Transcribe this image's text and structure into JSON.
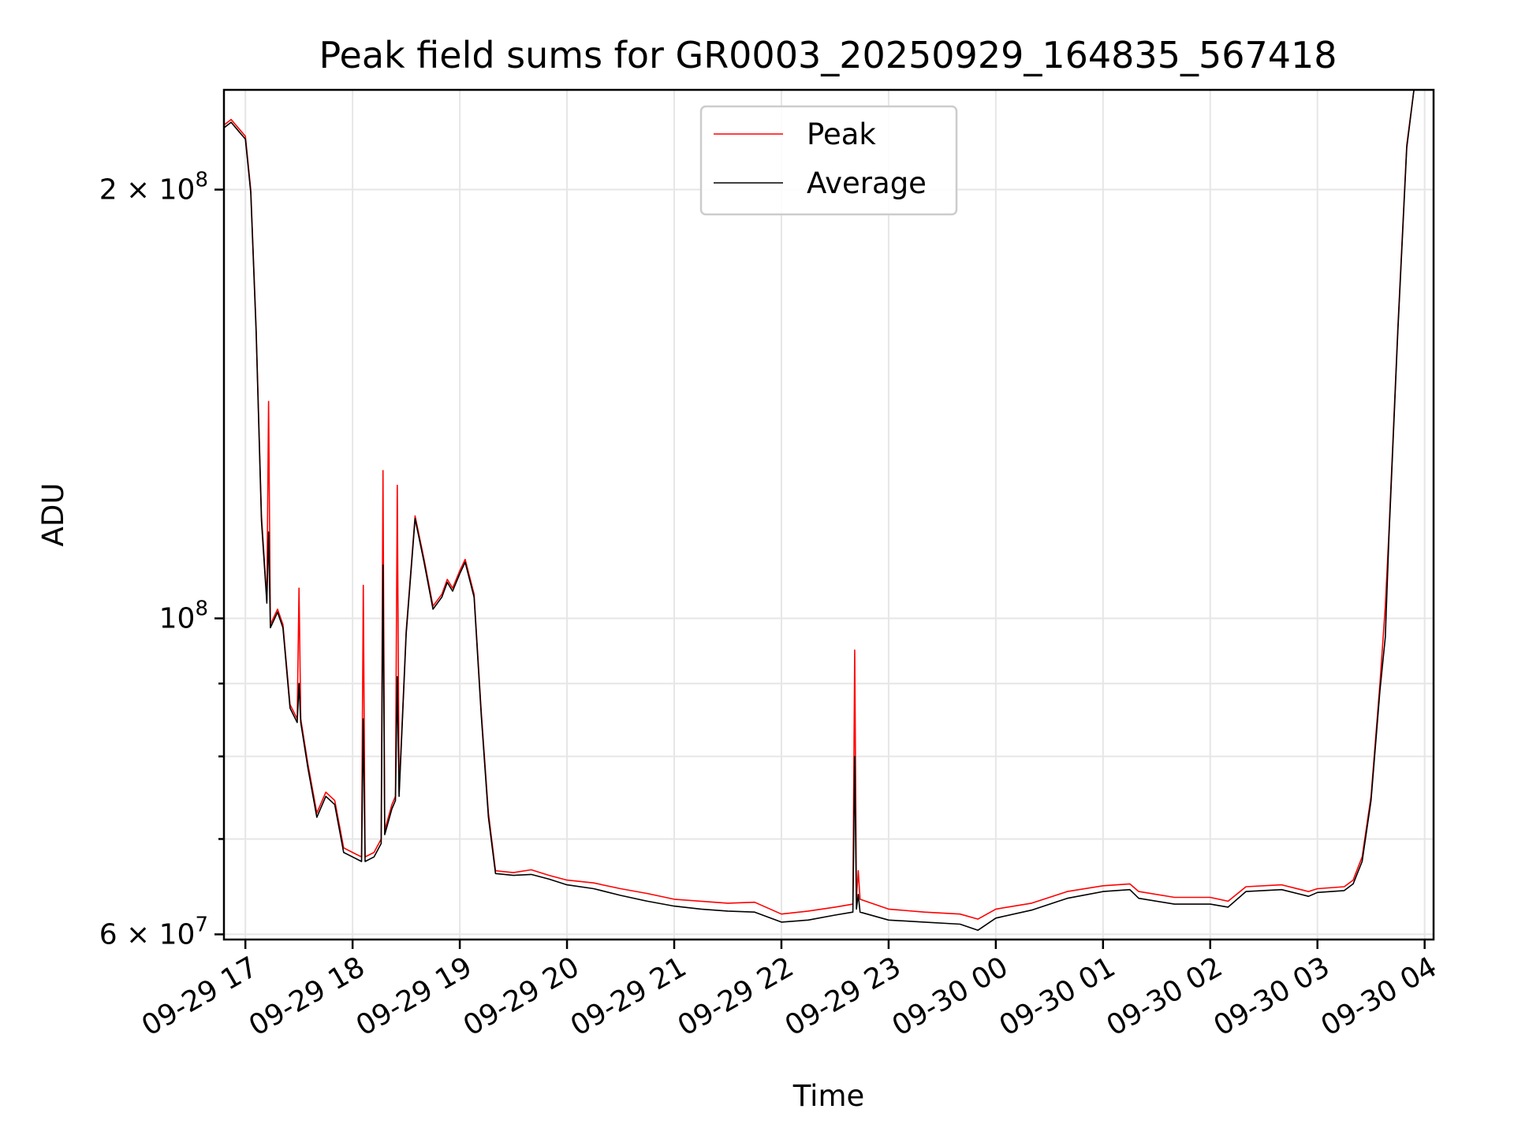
{
  "chart_data": {
    "type": "line",
    "title": "Peak field sums for GR0003_20250929_164835_567418",
    "xlabel": "Time",
    "ylabel": "ADU",
    "yscale": "log",
    "grid": true,
    "legend_position": "top-center",
    "xlim": [
      "2025-09-29 16:48",
      "2025-09-30 04:05"
    ],
    "ylim": [
      59500000,
      235000000
    ],
    "x_ticks": [
      {
        "t": "2025-09-29 17:00",
        "label": "09-29 17"
      },
      {
        "t": "2025-09-29 18:00",
        "label": "09-29 18"
      },
      {
        "t": "2025-09-29 19:00",
        "label": "09-29 19"
      },
      {
        "t": "2025-09-29 20:00",
        "label": "09-29 20"
      },
      {
        "t": "2025-09-29 21:00",
        "label": "09-29 21"
      },
      {
        "t": "2025-09-29 22:00",
        "label": "09-29 22"
      },
      {
        "t": "2025-09-29 23:00",
        "label": "09-29 23"
      },
      {
        "t": "2025-09-30 00:00",
        "label": "09-30 00"
      },
      {
        "t": "2025-09-30 01:00",
        "label": "09-30 01"
      },
      {
        "t": "2025-09-30 02:00",
        "label": "09-30 02"
      },
      {
        "t": "2025-09-30 03:00",
        "label": "09-30 03"
      },
      {
        "t": "2025-09-30 04:00",
        "label": "09-30 04"
      }
    ],
    "y_major_ticks": [
      {
        "v": 60000000,
        "base": "6",
        "exp": "7"
      },
      {
        "v": 100000000,
        "base": "",
        "exp": "8"
      },
      {
        "v": 200000000,
        "base": "2",
        "exp": "8"
      }
    ],
    "y_minor_ticks": [
      70000000,
      80000000,
      90000000
    ],
    "series": [
      {
        "name": "Peak",
        "color": "#ff0000",
        "points": [
          [
            "2025-09-29 16:48",
            222000000
          ],
          [
            "2025-09-29 16:52",
            224000000
          ],
          [
            "2025-09-29 16:56",
            221000000
          ],
          [
            "2025-09-29 17:00",
            218000000
          ],
          [
            "2025-09-29 17:03",
            200000000
          ],
          [
            "2025-09-29 17:06",
            160000000
          ],
          [
            "2025-09-29 17:09",
            118000000
          ],
          [
            "2025-09-29 17:12",
            103000000
          ],
          [
            "2025-09-29 17:13",
            142000000
          ],
          [
            "2025-09-29 17:14",
            99000000
          ],
          [
            "2025-09-29 17:18",
            101500000
          ],
          [
            "2025-09-29 17:21",
            99000000
          ],
          [
            "2025-09-29 17:25",
            87000000
          ],
          [
            "2025-09-29 17:29",
            85000000
          ],
          [
            "2025-09-29 17:30",
            105000000
          ],
          [
            "2025-09-29 17:31",
            85000000
          ],
          [
            "2025-09-29 17:35",
            79000000
          ],
          [
            "2025-09-29 17:40",
            73000000
          ],
          [
            "2025-09-29 17:45",
            75500000
          ],
          [
            "2025-09-29 17:50",
            74500000
          ],
          [
            "2025-09-29 17:55",
            69000000
          ],
          [
            "2025-09-29 18:00",
            68500000
          ],
          [
            "2025-09-29 18:05",
            68000000
          ],
          [
            "2025-09-29 18:06",
            105500000
          ],
          [
            "2025-09-29 18:07",
            68000000
          ],
          [
            "2025-09-29 18:12",
            68500000
          ],
          [
            "2025-09-29 18:16",
            70000000
          ],
          [
            "2025-09-29 18:17",
            127000000
          ],
          [
            "2025-09-29 18:18",
            71000000
          ],
          [
            "2025-09-29 18:22",
            74000000
          ],
          [
            "2025-09-29 18:24",
            75000000
          ],
          [
            "2025-09-29 18:25",
            124000000
          ],
          [
            "2025-09-29 18:26",
            75500000
          ],
          [
            "2025-09-29 18:30",
            98000000
          ],
          [
            "2025-09-29 18:35",
            118000000
          ],
          [
            "2025-09-29 18:40",
            110000000
          ],
          [
            "2025-09-29 18:45",
            102000000
          ],
          [
            "2025-09-29 18:50",
            104000000
          ],
          [
            "2025-09-29 18:53",
            106500000
          ],
          [
            "2025-09-29 18:56",
            105000000
          ],
          [
            "2025-09-29 19:00",
            108000000
          ],
          [
            "2025-09-29 19:03",
            110000000
          ],
          [
            "2025-09-29 19:08",
            104000000
          ],
          [
            "2025-09-29 19:12",
            86000000
          ],
          [
            "2025-09-29 19:16",
            73000000
          ],
          [
            "2025-09-29 19:20",
            66500000
          ],
          [
            "2025-09-29 19:30",
            66300000
          ],
          [
            "2025-09-29 19:40",
            66600000
          ],
          [
            "2025-09-29 19:50",
            66000000
          ],
          [
            "2025-09-29 20:00",
            65500000
          ],
          [
            "2025-09-29 20:15",
            65200000
          ],
          [
            "2025-09-29 20:30",
            64600000
          ],
          [
            "2025-09-29 20:45",
            64100000
          ],
          [
            "2025-09-29 21:00",
            63500000
          ],
          [
            "2025-09-29 21:15",
            63300000
          ],
          [
            "2025-09-29 21:30",
            63100000
          ],
          [
            "2025-09-29 21:45",
            63200000
          ],
          [
            "2025-09-29 22:00",
            62000000
          ],
          [
            "2025-09-29 22:15",
            62300000
          ],
          [
            "2025-09-29 22:30",
            62700000
          ],
          [
            "2025-09-29 22:40",
            63000000
          ],
          [
            "2025-09-29 22:41",
            95000000
          ],
          [
            "2025-09-29 22:42",
            63500000
          ],
          [
            "2025-09-29 22:43",
            66500000
          ],
          [
            "2025-09-29 22:44",
            63500000
          ],
          [
            "2025-09-29 23:00",
            62500000
          ],
          [
            "2025-09-29 23:20",
            62200000
          ],
          [
            "2025-09-29 23:40",
            62000000
          ],
          [
            "2025-09-29 23:50",
            61500000
          ],
          [
            "2025-09-30 00:00",
            62500000
          ],
          [
            "2025-09-30 00:20",
            63100000
          ],
          [
            "2025-09-30 00:40",
            64300000
          ],
          [
            "2025-09-30 01:00",
            64900000
          ],
          [
            "2025-09-30 01:15",
            65100000
          ],
          [
            "2025-09-30 01:20",
            64300000
          ],
          [
            "2025-09-30 01:40",
            63700000
          ],
          [
            "2025-09-30 02:00",
            63700000
          ],
          [
            "2025-09-30 02:10",
            63300000
          ],
          [
            "2025-09-30 02:20",
            64800000
          ],
          [
            "2025-09-30 02:40",
            65000000
          ],
          [
            "2025-09-30 02:55",
            64300000
          ],
          [
            "2025-09-30 03:00",
            64600000
          ],
          [
            "2025-09-30 03:15",
            64800000
          ],
          [
            "2025-09-30 03:20",
            65500000
          ],
          [
            "2025-09-30 03:25",
            68000000
          ],
          [
            "2025-09-30 03:30",
            75000000
          ],
          [
            "2025-09-30 03:35",
            90000000
          ],
          [
            "2025-09-30 03:38",
            102000000
          ],
          [
            "2025-09-30 03:40",
            115000000
          ],
          [
            "2025-09-30 03:45",
            160000000
          ],
          [
            "2025-09-30 03:50",
            215000000
          ],
          [
            "2025-09-30 03:54",
            235000000
          ]
        ]
      },
      {
        "name": "Average",
        "color": "#000000",
        "points": [
          [
            "2025-09-29 16:48",
            221000000
          ],
          [
            "2025-09-29 16:52",
            223000000
          ],
          [
            "2025-09-29 16:56",
            220000000
          ],
          [
            "2025-09-29 17:00",
            217000000
          ],
          [
            "2025-09-29 17:03",
            199000000
          ],
          [
            "2025-09-29 17:06",
            159000000
          ],
          [
            "2025-09-29 17:09",
            117000000
          ],
          [
            "2025-09-29 17:12",
            102500000
          ],
          [
            "2025-09-29 17:13",
            115000000
          ],
          [
            "2025-09-29 17:14",
            98500000
          ],
          [
            "2025-09-29 17:18",
            101000000
          ],
          [
            "2025-09-29 17:21",
            98500000
          ],
          [
            "2025-09-29 17:25",
            86500000
          ],
          [
            "2025-09-29 17:29",
            84500000
          ],
          [
            "2025-09-29 17:30",
            90000000
          ],
          [
            "2025-09-29 17:31",
            84500000
          ],
          [
            "2025-09-29 17:35",
            78500000
          ],
          [
            "2025-09-29 17:40",
            72500000
          ],
          [
            "2025-09-29 17:45",
            75000000
          ],
          [
            "2025-09-29 17:50",
            74000000
          ],
          [
            "2025-09-29 17:55",
            68500000
          ],
          [
            "2025-09-29 18:00",
            68000000
          ],
          [
            "2025-09-29 18:05",
            67500000
          ],
          [
            "2025-09-29 18:06",
            85000000
          ],
          [
            "2025-09-29 18:07",
            67500000
          ],
          [
            "2025-09-29 18:12",
            68000000
          ],
          [
            "2025-09-29 18:16",
            69500000
          ],
          [
            "2025-09-29 18:17",
            109000000
          ],
          [
            "2025-09-29 18:18",
            70500000
          ],
          [
            "2025-09-29 18:22",
            73500000
          ],
          [
            "2025-09-29 18:24",
            74500000
          ],
          [
            "2025-09-29 18:25",
            91000000
          ],
          [
            "2025-09-29 18:26",
            75000000
          ],
          [
            "2025-09-29 18:30",
            97500000
          ],
          [
            "2025-09-29 18:35",
            117500000
          ],
          [
            "2025-09-29 18:40",
            109500000
          ],
          [
            "2025-09-29 18:45",
            101500000
          ],
          [
            "2025-09-29 18:50",
            103500000
          ],
          [
            "2025-09-29 18:53",
            106000000
          ],
          [
            "2025-09-29 18:56",
            104500000
          ],
          [
            "2025-09-29 19:00",
            107500000
          ],
          [
            "2025-09-29 19:03",
            109500000
          ],
          [
            "2025-09-29 19:08",
            103500000
          ],
          [
            "2025-09-29 19:12",
            85500000
          ],
          [
            "2025-09-29 19:16",
            72500000
          ],
          [
            "2025-09-29 19:20",
            66200000
          ],
          [
            "2025-09-29 19:30",
            66000000
          ],
          [
            "2025-09-29 19:40",
            66100000
          ],
          [
            "2025-09-29 19:50",
            65600000
          ],
          [
            "2025-09-29 20:00",
            65000000
          ],
          [
            "2025-09-29 20:15",
            64600000
          ],
          [
            "2025-09-29 20:30",
            63900000
          ],
          [
            "2025-09-29 20:45",
            63300000
          ],
          [
            "2025-09-29 21:00",
            62800000
          ],
          [
            "2025-09-29 21:15",
            62500000
          ],
          [
            "2025-09-29 21:30",
            62300000
          ],
          [
            "2025-09-29 21:45",
            62200000
          ],
          [
            "2025-09-29 22:00",
            61200000
          ],
          [
            "2025-09-29 22:15",
            61400000
          ],
          [
            "2025-09-29 22:30",
            61900000
          ],
          [
            "2025-09-29 22:40",
            62200000
          ],
          [
            "2025-09-29 22:41",
            80000000
          ],
          [
            "2025-09-29 22:42",
            62500000
          ],
          [
            "2025-09-29 22:43",
            64000000
          ],
          [
            "2025-09-29 22:44",
            62200000
          ],
          [
            "2025-09-29 23:00",
            61400000
          ],
          [
            "2025-09-29 23:20",
            61200000
          ],
          [
            "2025-09-29 23:40",
            61000000
          ],
          [
            "2025-09-29 23:50",
            60400000
          ],
          [
            "2025-09-30 00:00",
            61600000
          ],
          [
            "2025-09-30 00:20",
            62400000
          ],
          [
            "2025-09-30 00:40",
            63600000
          ],
          [
            "2025-09-30 01:00",
            64300000
          ],
          [
            "2025-09-30 01:15",
            64500000
          ],
          [
            "2025-09-30 01:20",
            63600000
          ],
          [
            "2025-09-30 01:40",
            63000000
          ],
          [
            "2025-09-30 02:00",
            63000000
          ],
          [
            "2025-09-30 02:10",
            62700000
          ],
          [
            "2025-09-30 02:20",
            64300000
          ],
          [
            "2025-09-30 02:40",
            64500000
          ],
          [
            "2025-09-30 02:55",
            63800000
          ],
          [
            "2025-09-30 03:00",
            64200000
          ],
          [
            "2025-09-30 03:15",
            64400000
          ],
          [
            "2025-09-30 03:20",
            65100000
          ],
          [
            "2025-09-30 03:25",
            67500000
          ],
          [
            "2025-09-30 03:30",
            74500000
          ],
          [
            "2025-09-30 03:35",
            89000000
          ],
          [
            "2025-09-30 03:38",
            97000000
          ],
          [
            "2025-09-30 03:40",
            114000000
          ],
          [
            "2025-09-30 03:45",
            159000000
          ],
          [
            "2025-09-30 03:50",
            214000000
          ],
          [
            "2025-09-30 03:54",
            235000000
          ]
        ]
      }
    ]
  }
}
